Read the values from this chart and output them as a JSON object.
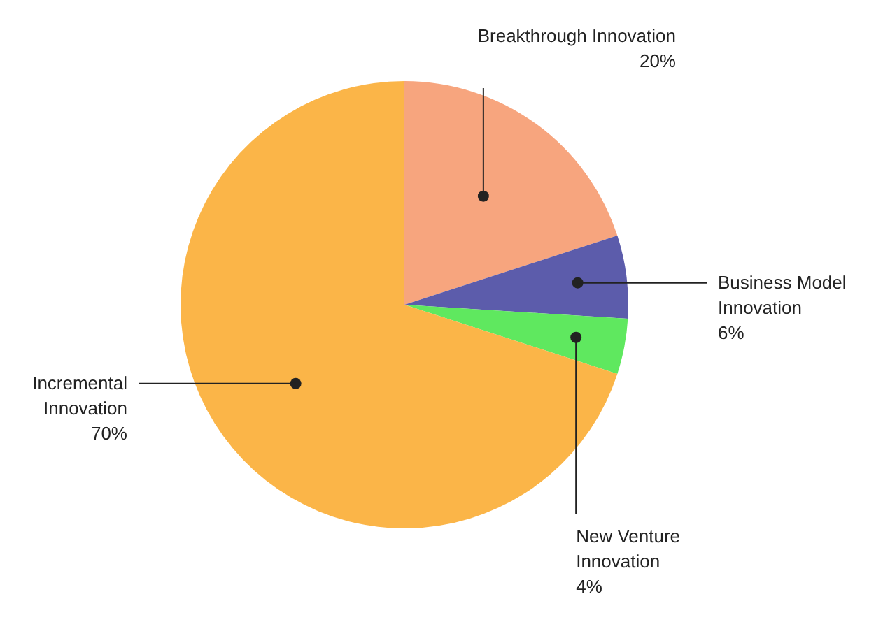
{
  "chart_data": {
    "type": "pie",
    "categories": [
      "Breakthrough Innovation",
      "Business Model Innovation",
      "New Venture Innovation",
      "Incremental Innovation"
    ],
    "values": [
      20,
      6,
      4,
      70
    ],
    "colors": [
      "#f7a57e",
      "#5c5cab",
      "#5fe85f",
      "#fbb548"
    ],
    "value_labels": [
      "20%",
      "6%",
      "4%",
      "70%"
    ],
    "legend": false
  }
}
